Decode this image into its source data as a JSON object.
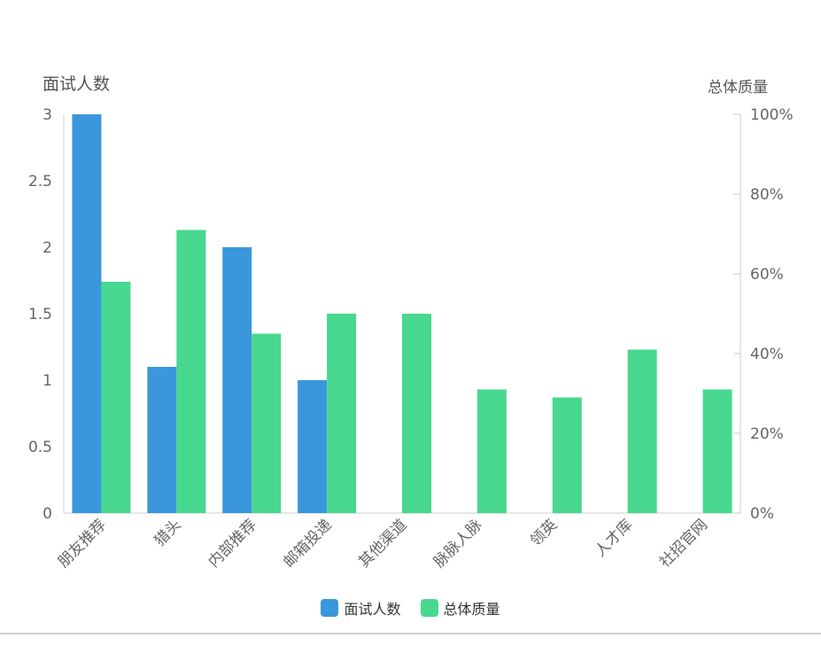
{
  "chart_data": {
    "type": "bar",
    "categories": [
      "朋友推荐",
      "猎头",
      "内部推荐",
      "邮箱投递",
      "其他渠道",
      "脉脉人脉",
      "领英",
      "人才库",
      "社招官网"
    ],
    "series": [
      {
        "name": "面试人数",
        "axis": "left",
        "color": "#3a97dc",
        "values": [
          3,
          1.1,
          2,
          1,
          0,
          0,
          0,
          0,
          0
        ]
      },
      {
        "name": "总体质量",
        "axis": "right",
        "color": "#48d88f",
        "values": [
          58,
          71,
          45,
          50,
          50,
          31,
          29,
          41,
          31
        ]
      }
    ],
    "y_left": {
      "label": "面试人数",
      "ticks": [
        "0",
        "0.5",
        "1",
        "1.5",
        "2",
        "2.5",
        "3"
      ],
      "ylim": [
        0,
        3
      ]
    },
    "y_right": {
      "label": "总体质量",
      "ticks": [
        "0%",
        "20%",
        "40%",
        "60%",
        "80%",
        "100%"
      ],
      "ylim": [
        0,
        100
      ]
    },
    "grid": false,
    "legend_position": "bottom-center"
  },
  "colors": {
    "axis": "#cccccc",
    "tick_text": "#666666",
    "bar1": "#3a97dc",
    "bar2": "#48d88f"
  }
}
